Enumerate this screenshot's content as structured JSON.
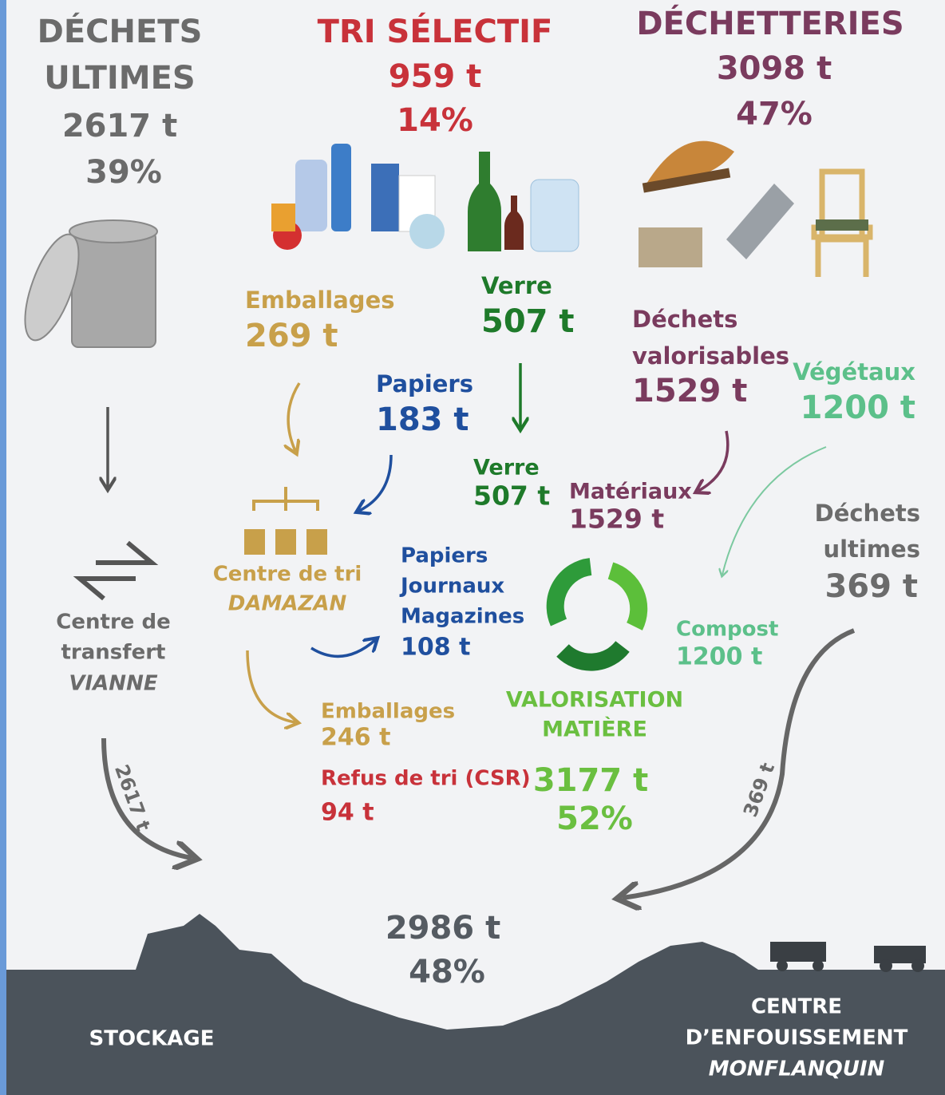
{
  "ultimes": {
    "title": [
      "DÉCHETS",
      "ULTIMES"
    ],
    "tonnage": "2617 t",
    "share": "39%"
  },
  "tri": {
    "title": "TRI SÉLECTIF",
    "tonnage": "959 t",
    "share": "14%"
  },
  "dechetteries": {
    "title": "DÉCHETTERIES",
    "tonnage": "3098 t",
    "share": "47%"
  },
  "flows": {
    "emballages_in": {
      "label": "Emballages",
      "tonnage": "269 t"
    },
    "verre_in": {
      "label": "Verre",
      "tonnage": "507 t"
    },
    "valorisables": {
      "label": [
        "Déchets",
        "valorisables"
      ],
      "tonnage": "1529 t"
    },
    "vegetaux": {
      "label": "Végétaux",
      "tonnage": "1200 t"
    },
    "papiers_in": {
      "label": "Papiers",
      "tonnage": "183 t"
    },
    "verre_out": {
      "label": "Verre",
      "tonnage": "507 t"
    },
    "materiaux": {
      "label": "Matériaux",
      "tonnage": "1529 t"
    },
    "ultimes_dech": {
      "label": [
        "Déchets",
        "ultimes"
      ],
      "tonnage": "369 t"
    },
    "papiers_out": {
      "label": [
        "Papiers",
        "Journaux",
        "Magazines"
      ],
      "tonnage": "108 t"
    },
    "compost": {
      "label": "Compost",
      "tonnage": "1200 t"
    },
    "emballages_out": {
      "label": "Emballages",
      "tonnage": "246 t"
    },
    "refus": {
      "label": "Refus de tri (CSR)",
      "tonnage": "94 t"
    },
    "arrow_transfert": "2617 t",
    "arrow_enfouissement": "369 t"
  },
  "centre_tri": {
    "label": "Centre de tri",
    "place": "DAMAZAN"
  },
  "centre_transfert": {
    "label": [
      "Centre de",
      "transfert"
    ],
    "place": "VIANNE"
  },
  "valorisation": {
    "label": [
      "VALORISATION",
      "MATIÈRE"
    ],
    "tonnage": "3177 t",
    "share": "52%"
  },
  "stockage": {
    "tonnage": "2986 t",
    "share": "48%",
    "label": "STOCKAGE"
  },
  "enfouissement": {
    "label": [
      "CENTRE",
      "D’ENFOUISSEMENT"
    ],
    "place": "MONFLANQUIN"
  }
}
